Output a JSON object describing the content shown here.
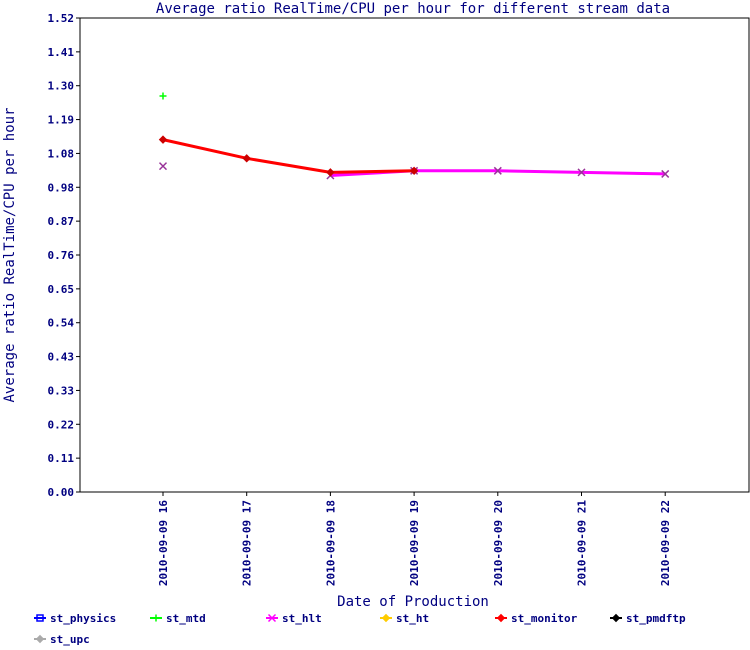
{
  "chart_data": {
    "type": "line",
    "title": "Average ratio RealTime/CPU per hour for different stream data",
    "xlabel": "Date of Production",
    "ylabel": "Average ratio RealTime/CPU per hour",
    "categories": [
      "2010-09-09 16",
      "2010-09-09 17",
      "2010-09-09 18",
      "2010-09-09 19",
      "2010-09-09 20",
      "2010-09-09 21",
      "2010-09-09 22"
    ],
    "y_ticks": [
      "0.00",
      "0.11",
      "0.22",
      "0.33",
      "0.43",
      "0.54",
      "0.65",
      "0.76",
      "0.87",
      "0.98",
      "1.08",
      "1.19",
      "1.30",
      "1.41",
      "1.52"
    ],
    "ylim": [
      0,
      1.52
    ],
    "grid": false,
    "legend_position": "bottom",
    "series": [
      {
        "name": "st_physics",
        "color": "#0000ff",
        "marker": "square",
        "values": [
          null,
          null,
          null,
          null,
          null,
          null,
          null
        ]
      },
      {
        "name": "st_mtd",
        "color": "#00ff00",
        "marker": "plus",
        "values": [
          1.27,
          null,
          null,
          null,
          null,
          null,
          null
        ]
      },
      {
        "name": "st_hlt",
        "color": "#ff00ff",
        "marker": "x",
        "values": [
          1.045,
          null,
          1.015,
          1.03,
          1.03,
          1.025,
          1.02
        ]
      },
      {
        "name": "st_ht",
        "color": "#ffcc00",
        "marker": "diamond",
        "values": [
          null,
          null,
          null,
          null,
          null,
          null,
          null
        ]
      },
      {
        "name": "st_monitor",
        "color": "#ff0000",
        "marker": "diamond",
        "values": [
          1.13,
          1.07,
          1.025,
          1.03,
          null,
          null,
          null
        ]
      },
      {
        "name": "st_pmdftp",
        "color": "#000000",
        "marker": "diamond",
        "values": [
          null,
          null,
          null,
          null,
          null,
          null,
          null
        ]
      },
      {
        "name": "st_upc",
        "color": "#aaaaaa",
        "marker": "diamond",
        "values": [
          null,
          null,
          null,
          null,
          null,
          null,
          null
        ]
      }
    ]
  }
}
